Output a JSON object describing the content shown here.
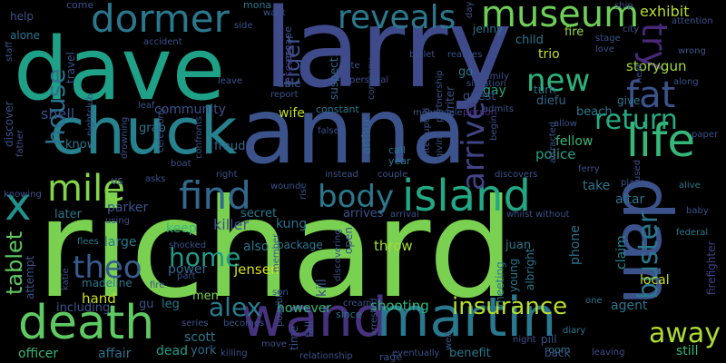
{
  "words": [
    {
      "text": "richard",
      "color": "#7ad151"
    },
    {
      "text": "larry",
      "color": "#3e4a89"
    },
    {
      "text": "dave",
      "color": "#1fa187"
    },
    {
      "text": "anna",
      "color": "#3b528b"
    },
    {
      "text": "chuck",
      "color": "#26828e"
    },
    {
      "text": "wand",
      "color": "#46327e"
    },
    {
      "text": "martin",
      "color": "#2a788e"
    },
    {
      "text": "dan",
      "color": "#3b528b"
    },
    {
      "text": "death",
      "color": "#5ec962"
    },
    {
      "text": "island",
      "color": "#22a884"
    },
    {
      "text": "dormer",
      "color": "#2a788e"
    },
    {
      "text": "museum",
      "color": "#6ece58"
    },
    {
      "text": "reveals",
      "color": "#2a788e"
    },
    {
      "text": "life",
      "color": "#35b779"
    },
    {
      "text": "find",
      "color": "#31688e"
    },
    {
      "text": "body",
      "color": "#2a788e"
    },
    {
      "text": "mile",
      "color": "#84d44b"
    },
    {
      "text": "theo",
      "color": "#365c8d"
    },
    {
      "text": "arrive",
      "color": "#414487"
    },
    {
      "text": "buster",
      "color": "#2a788e"
    },
    {
      "text": "fat",
      "color": "#3b528b"
    },
    {
      "text": "try",
      "color": "#482878"
    },
    {
      "text": "new",
      "color": "#2db27d"
    },
    {
      "text": "return",
      "color": "#25ab82"
    },
    {
      "text": "away",
      "color": "#addc30"
    },
    {
      "text": "home",
      "color": "#1f9a8a"
    },
    {
      "text": "alex",
      "color": "#287c8e"
    },
    {
      "text": "insurance",
      "color": "#b8de29"
    },
    {
      "text": "house",
      "color": "#2c718e"
    },
    {
      "text": "tiger",
      "color": "#3b528b"
    },
    {
      "text": "x",
      "color": "#21918c"
    },
    {
      "text": "tablet",
      "color": "#5ec962"
    },
    {
      "text": "exhibit",
      "color": "#b5de2b"
    },
    {
      "text": "shell",
      "color": "#3b528b"
    },
    {
      "text": "community",
      "color": "#3b528b"
    },
    {
      "text": "jensen",
      "color": "#d8e219"
    },
    {
      "text": "storygun",
      "color": "#a0da39"
    },
    {
      "text": "killer",
      "color": "#3e4a89"
    },
    {
      "text": "police",
      "color": "#20a386"
    },
    {
      "text": "fellow",
      "color": "#35b779"
    },
    {
      "text": "shooting",
      "color": "#35b779"
    },
    {
      "text": "hand",
      "color": "#cde11d"
    },
    {
      "text": "power",
      "color": "#31688e"
    },
    {
      "text": "however",
      "color": "#35b779"
    },
    {
      "text": "officer",
      "color": "#35b779"
    },
    {
      "text": "affair",
      "color": "#2c728e"
    },
    {
      "text": "dead",
      "color": "#1f9e89"
    },
    {
      "text": "still",
      "color": "#35b779"
    },
    {
      "text": "scott",
      "color": "#2a788e"
    },
    {
      "text": "york",
      "color": "#31688e"
    },
    {
      "text": "trio",
      "color": "#c2df23"
    },
    {
      "text": "gay",
      "color": "#22a884"
    },
    {
      "text": "beach",
      "color": "#2a788e"
    },
    {
      "text": "altar",
      "color": "#2c718e"
    },
    {
      "text": "fire",
      "color": "#90d743"
    },
    {
      "text": "child",
      "color": "#2a788e"
    },
    {
      "text": "jenny",
      "color": "#2a788e"
    },
    {
      "text": "wife",
      "color": "#bddf26"
    },
    {
      "text": "arthur",
      "color": "#31688e"
    },
    {
      "text": "kung",
      "color": "#2c728e"
    },
    {
      "text": "claim",
      "color": "#25858e"
    },
    {
      "text": "take",
      "color": "#2a788e"
    },
    {
      "text": "large",
      "color": "#2a788e"
    },
    {
      "text": "keep",
      "color": "#35b779"
    },
    {
      "text": "parker",
      "color": "#39568c"
    },
    {
      "text": "later",
      "color": "#2a788e"
    },
    {
      "text": "secret",
      "color": "#2a788e"
    },
    {
      "text": "arrives",
      "color": "#3b528b"
    },
    {
      "text": "also",
      "color": "#2a788e"
    },
    {
      "text": "throw",
      "color": "#a5db36"
    },
    {
      "text": "juan",
      "color": "#2a788e"
    },
    {
      "text": "phone",
      "color": "#2c728e"
    },
    {
      "text": "local",
      "color": "#c2df23"
    },
    {
      "text": "agent",
      "color": "#2a788e"
    },
    {
      "text": "firefighter",
      "color": "#414487"
    },
    {
      "text": "benefit",
      "color": "#2a788e"
    },
    {
      "text": "kill",
      "color": "#3b528b"
    },
    {
      "text": "escape",
      "color": "#46327e"
    },
    {
      "text": "suspect",
      "color": "#31688e"
    },
    {
      "text": "travel",
      "color": "#3b528b"
    },
    {
      "text": "discover",
      "color": "#3b528b"
    },
    {
      "text": "grab",
      "color": "#2a788e"
    },
    {
      "text": "know",
      "color": "#2a788e"
    },
    {
      "text": "fraud",
      "color": "#31688e"
    },
    {
      "text": "men",
      "color": "#7ad151"
    },
    {
      "text": "gu",
      "color": "#3b528b"
    },
    {
      "text": "leg",
      "color": "#2a788e"
    },
    {
      "text": "including",
      "color": "#39568c"
    },
    {
      "text": "attempt",
      "color": "#3b528b"
    },
    {
      "text": "madeline",
      "color": "#2a788e"
    },
    {
      "text": "alone",
      "color": "#2a788e"
    },
    {
      "text": "help",
      "color": "#3b528b"
    },
    {
      "text": "come",
      "color": "#3b528b"
    },
    {
      "text": "mona",
      "color": "#2a788e"
    },
    {
      "text": "diefu",
      "color": "#31688e"
    },
    {
      "text": "guest",
      "color": "#3b528b"
    },
    {
      "text": "go",
      "color": "#2a788e"
    },
    {
      "text": "turn",
      "color": "#2a788e"
    },
    {
      "text": "meeting",
      "color": "#2a788e"
    },
    {
      "text": "young",
      "color": "#2a788e"
    },
    {
      "text": "albright",
      "color": "#2a788e"
    },
    {
      "text": "give",
      "color": "#2a788e"
    },
    {
      "text": "open",
      "color": "#3b528b"
    },
    {
      "text": "writer",
      "color": "#3b528b"
    },
    {
      "text": "package",
      "color": "#2a788e"
    },
    {
      "text": "constant",
      "color": "#2a788e"
    },
    {
      "text": "able",
      "color": "#3b528b"
    },
    {
      "text": "time",
      "color": "#3b528b"
    },
    {
      "text": "fall",
      "color": "#3b528b"
    },
    {
      "text": "since",
      "color": "#2a788e"
    },
    {
      "text": "escape",
      "color": "#3b528b"
    },
    {
      "text": "call",
      "color": "#2a788e"
    },
    {
      "text": "year",
      "color": "#2a788e"
    },
    {
      "text": "rage",
      "color": "#3b528b"
    },
    {
      "text": "room",
      "color": "#2a788e"
    },
    {
      "text": "person",
      "color": "#482878"
    },
    {
      "text": "paper",
      "color": "#3b528b"
    },
    {
      "text": "baby",
      "color": "#3b528b"
    },
    {
      "text": "alive",
      "color": "#2a788e"
    },
    {
      "text": "federal",
      "color": "#2a788e"
    },
    {
      "text": "one",
      "color": "#2a788e"
    },
    {
      "text": "leaving",
      "color": "#3b528b"
    },
    {
      "text": "back",
      "color": "#3b528b"
    },
    {
      "text": "pill",
      "color": "#3b528b"
    },
    {
      "text": "diary",
      "color": "#2a788e"
    },
    {
      "text": "night",
      "color": "#3b528b"
    },
    {
      "text": "well",
      "color": "#3b528b"
    },
    {
      "text": "eventually",
      "color": "#3b528b"
    },
    {
      "text": "cream",
      "color": "#3b528b"
    },
    {
      "text": "son",
      "color": "#3b528b"
    },
    {
      "text": "move",
      "color": "#3b528b"
    },
    {
      "text": "killing",
      "color": "#3b528b"
    },
    {
      "text": "series",
      "color": "#3b528b"
    },
    {
      "text": "becomes",
      "color": "#3b528b"
    },
    {
      "text": "fire",
      "color": "#3b528b"
    },
    {
      "text": "part",
      "color": "#3b528b"
    },
    {
      "text": "shocked",
      "color": "#3b528b"
    },
    {
      "text": "flees",
      "color": "#2a788e"
    },
    {
      "text": "using",
      "color": "#3b528b"
    },
    {
      "text": "knowing",
      "color": "#3b528b"
    },
    {
      "text": "us",
      "color": "#3b528b"
    },
    {
      "text": "asks",
      "color": "#3b528b"
    },
    {
      "text": "boat",
      "color": "#3b528b"
    },
    {
      "text": "right",
      "color": "#3b528b"
    },
    {
      "text": "wound",
      "color": "#3b528b"
    },
    {
      "text": "instead",
      "color": "#3b528b"
    },
    {
      "text": "couple",
      "color": "#3b528b"
    },
    {
      "text": "discovers",
      "color": "#3b528b"
    },
    {
      "text": "arrival",
      "color": "#3b528b"
    },
    {
      "text": "whilst",
      "color": "#3b528b"
    },
    {
      "text": "without",
      "color": "#3b528b"
    },
    {
      "text": "place",
      "color": "#3b528b"
    },
    {
      "text": "ferry",
      "color": "#3b528b"
    },
    {
      "text": "attracted",
      "color": "#3b528b"
    },
    {
      "text": "allow",
      "color": "#3b528b"
    },
    {
      "text": "begin",
      "color": "#3b528b"
    },
    {
      "text": "false",
      "color": "#3b528b"
    },
    {
      "text": "report",
      "color": "#3b528b"
    },
    {
      "text": "leave",
      "color": "#3b528b"
    },
    {
      "text": "leaf",
      "color": "#3b528b"
    },
    {
      "text": "confronts",
      "color": "#3b528b"
    },
    {
      "text": "drowning",
      "color": "#3b528b"
    },
    {
      "text": "ceremony",
      "color": "#3b528b"
    },
    {
      "text": "nightclub",
      "color": "#3b528b"
    },
    {
      "text": "accident",
      "color": "#3b528b"
    },
    {
      "text": "side",
      "color": "#3b528b"
    },
    {
      "text": "pete",
      "color": "#3b528b"
    },
    {
      "text": "personal",
      "color": "#3b528b"
    },
    {
      "text": "bullet",
      "color": "#3b528b"
    },
    {
      "text": "realizes",
      "color": "#3b528b"
    },
    {
      "text": "family",
      "color": "#3b528b"
    },
    {
      "text": "situation",
      "color": "#3b528b"
    },
    {
      "text": "partnership",
      "color": "#3b528b"
    },
    {
      "text": "company",
      "color": "#3b528b"
    },
    {
      "text": "admits",
      "color": "#3b528b"
    },
    {
      "text": "meanwhile",
      "color": "#3b528b"
    },
    {
      "text": "interrupted",
      "color": "#3b528b"
    },
    {
      "text": "giving",
      "color": "#3b528b"
    },
    {
      "text": "day",
      "color": "#3b528b"
    },
    {
      "text": "ship",
      "color": "#3b528b"
    },
    {
      "text": "city",
      "color": "#3b528b"
    },
    {
      "text": "stage",
      "color": "#3b528b"
    },
    {
      "text": "love",
      "color": "#3b528b"
    },
    {
      "text": "wrong",
      "color": "#3b528b"
    },
    {
      "text": "along",
      "color": "#3b528b"
    },
    {
      "text": "next",
      "color": "#3b528b"
    },
    {
      "text": "attention",
      "color": "#3b528b"
    },
    {
      "text": "staff",
      "color": "#3b528b"
    },
    {
      "text": "katie",
      "color": "#3b528b"
    },
    {
      "text": "father",
      "color": "#3b528b"
    },
    {
      "text": "rise",
      "color": "#3b528b"
    },
    {
      "text": "member",
      "color": "#3b528b"
    },
    {
      "text": "possible",
      "color": "#3b528b"
    },
    {
      "text": "arrested",
      "color": "#3b528b"
    },
    {
      "text": "discovering",
      "color": "#3b528b"
    },
    {
      "text": "relationship",
      "color": "#3b528b"
    },
    {
      "text": "want",
      "color": "#3b528b"
    },
    {
      "text": "used",
      "color": "#3b528b"
    }
  ]
}
